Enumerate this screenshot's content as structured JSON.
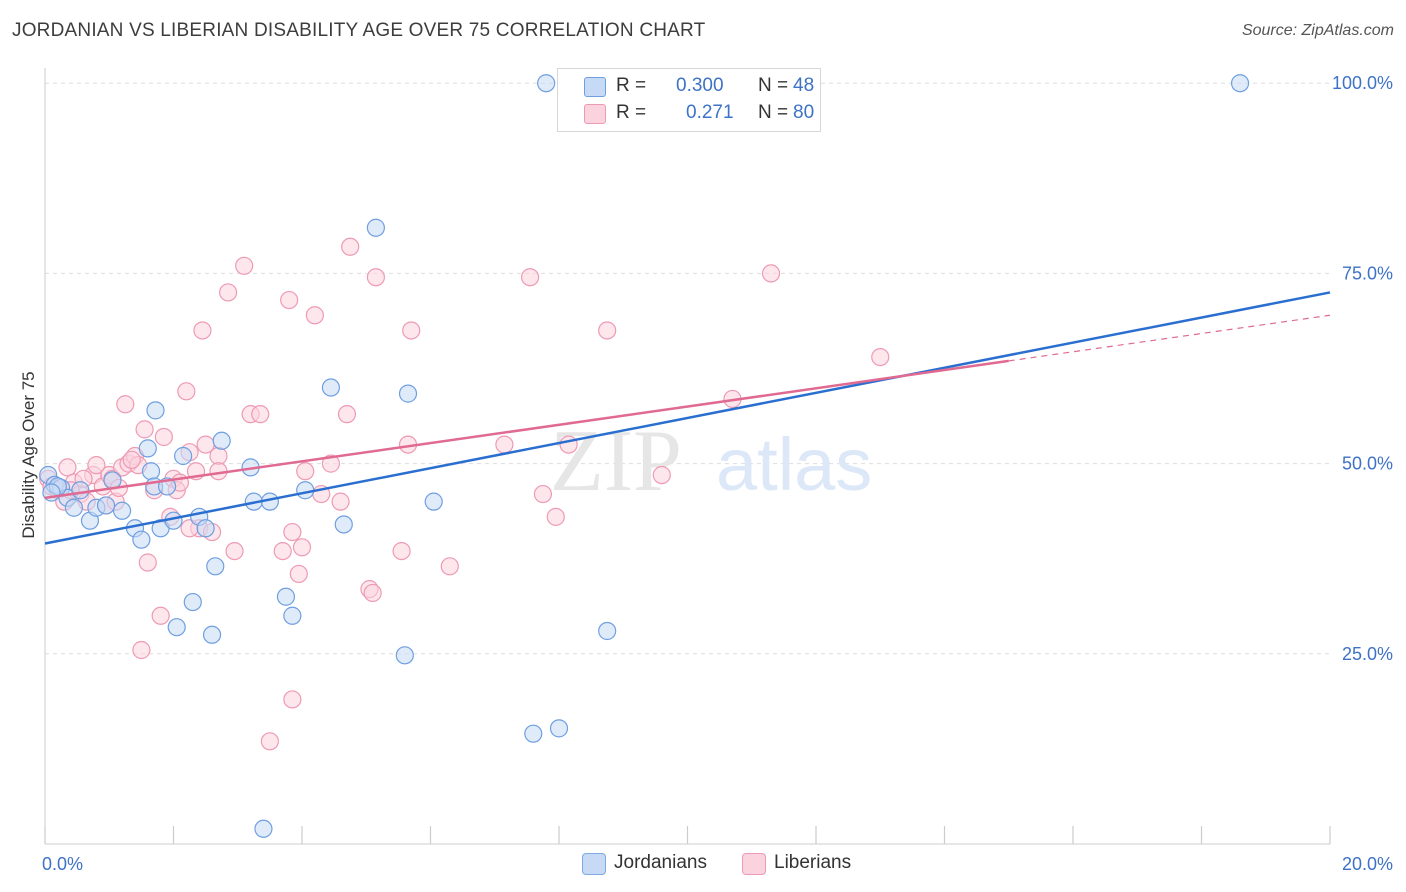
{
  "title": "JORDANIAN VS LIBERIAN DISABILITY AGE OVER 75 CORRELATION CHART",
  "source": "Source: ZipAtlas.com",
  "watermark": {
    "zip": "ZIP",
    "atlas": "atlas"
  },
  "legend": {
    "rows": [
      {
        "r_label": "R =",
        "r_value": "0.300",
        "n_label": "N =",
        "n_value": "48",
        "color": "#a8c6f0",
        "stroke": "#6f9fe0"
      },
      {
        "r_label": "R =",
        "r_value": "0.271",
        "n_label": "N =",
        "n_value": "80",
        "color": "#f7b8cc",
        "stroke": "#e98aa9"
      }
    ]
  },
  "bottom_legend": [
    {
      "label": "Jordanians",
      "color": "#c6daf6",
      "stroke": "#7ea9e4"
    },
    {
      "label": "Liberians",
      "color": "#fbd3df",
      "stroke": "#ee9ab4"
    }
  ],
  "chart_data": {
    "type": "scatter",
    "title": "JORDANIAN VS LIBERIAN DISABILITY AGE OVER 75 CORRELATION CHART",
    "xlabel": "",
    "ylabel": "Disability Age Over 75",
    "xlim": [
      0,
      20
    ],
    "ylim": [
      0,
      102
    ],
    "x_tick_labels": [
      {
        "value": 0,
        "label": "0.0%"
      },
      {
        "value": 20,
        "label": "20.0%"
      }
    ],
    "y_tick_labels": [
      {
        "value": 25,
        "label": "25.0%"
      },
      {
        "value": 50,
        "label": "50.0%"
      },
      {
        "value": 75,
        "label": "75.0%"
      },
      {
        "value": 100,
        "label": "100.0%"
      }
    ],
    "grid": true,
    "legend_position": "top-center",
    "series": [
      {
        "name": "Jordanians",
        "color": "#6f9fe0",
        "fill": "#c6daf6",
        "trend": {
          "x": [
            0,
            20
          ],
          "y": [
            39.5,
            72.5
          ],
          "color": "#2a6fd0"
        },
        "points": [
          [
            0.05,
            48.5
          ],
          [
            0.15,
            47.2
          ],
          [
            0.25,
            46.8
          ],
          [
            0.35,
            45.5
          ],
          [
            0.45,
            44.2
          ],
          [
            0.55,
            46.5
          ],
          [
            0.7,
            42.5
          ],
          [
            0.8,
            44.2
          ],
          [
            0.95,
            44.5
          ],
          [
            1.05,
            47.8
          ],
          [
            1.2,
            43.8
          ],
          [
            1.4,
            41.5
          ],
          [
            1.5,
            40.0
          ],
          [
            1.6,
            52.0
          ],
          [
            1.65,
            49.0
          ],
          [
            1.7,
            47.0
          ],
          [
            1.72,
            57.0
          ],
          [
            1.8,
            41.5
          ],
          [
            1.9,
            47.0
          ],
          [
            2.0,
            42.5
          ],
          [
            2.05,
            28.5
          ],
          [
            2.15,
            51.0
          ],
          [
            2.3,
            31.8
          ],
          [
            2.4,
            43.0
          ],
          [
            2.5,
            41.5
          ],
          [
            2.6,
            27.5
          ],
          [
            2.65,
            36.5
          ],
          [
            2.75,
            53.0
          ],
          [
            3.2,
            49.5
          ],
          [
            3.25,
            45.0
          ],
          [
            3.5,
            45.0
          ],
          [
            3.75,
            32.5
          ],
          [
            3.85,
            30.0
          ],
          [
            4.05,
            46.5
          ],
          [
            4.45,
            60.0
          ],
          [
            4.65,
            42.0
          ],
          [
            5.15,
            81.0
          ],
          [
            5.6,
            24.8
          ],
          [
            5.65,
            59.2
          ],
          [
            6.05,
            45.0
          ],
          [
            7.6,
            14.5
          ],
          [
            7.8,
            100.0
          ],
          [
            8.0,
            15.2
          ],
          [
            8.75,
            28.0
          ],
          [
            3.4,
            2.0
          ],
          [
            18.6,
            100.0
          ],
          [
            0.2,
            47.0
          ],
          [
            0.1,
            46.2
          ]
        ]
      },
      {
        "name": "Liberians",
        "color": "#ee9ab4",
        "fill": "#fbd3df",
        "trend": {
          "x": [
            0,
            15
          ],
          "y": [
            45.5,
            63.5
          ],
          "color": "#e06a92"
        },
        "trend_dashed": {
          "x": [
            15,
            20
          ],
          "y": [
            63.5,
            69.5
          ]
        },
        "points": [
          [
            0.05,
            48.0
          ],
          [
            0.1,
            47.0
          ],
          [
            0.2,
            46.5
          ],
          [
            0.3,
            45.0
          ],
          [
            0.35,
            49.5
          ],
          [
            0.45,
            47.5
          ],
          [
            0.55,
            46.0
          ],
          [
            0.65,
            45.0
          ],
          [
            0.75,
            48.5
          ],
          [
            0.8,
            49.8
          ],
          [
            0.9,
            47.0
          ],
          [
            0.95,
            44.5
          ],
          [
            1.0,
            48.5
          ],
          [
            1.05,
            48.0
          ],
          [
            1.1,
            45.0
          ],
          [
            1.2,
            49.5
          ],
          [
            1.25,
            57.8
          ],
          [
            1.3,
            50.0
          ],
          [
            1.4,
            51.0
          ],
          [
            1.45,
            49.8
          ],
          [
            1.5,
            25.5
          ],
          [
            1.55,
            54.5
          ],
          [
            1.6,
            37.0
          ],
          [
            1.7,
            46.5
          ],
          [
            1.8,
            30.0
          ],
          [
            1.85,
            53.5
          ],
          [
            1.95,
            43.0
          ],
          [
            2.0,
            48.0
          ],
          [
            2.05,
            46.5
          ],
          [
            2.1,
            47.5
          ],
          [
            2.2,
            59.5
          ],
          [
            2.25,
            51.5
          ],
          [
            2.35,
            49.0
          ],
          [
            2.4,
            41.5
          ],
          [
            2.45,
            67.5
          ],
          [
            2.5,
            52.5
          ],
          [
            2.6,
            41.0
          ],
          [
            2.7,
            51.0
          ],
          [
            2.85,
            72.5
          ],
          [
            2.95,
            38.5
          ],
          [
            3.1,
            76.0
          ],
          [
            3.2,
            56.5
          ],
          [
            3.35,
            56.5
          ],
          [
            3.7,
            38.5
          ],
          [
            3.8,
            71.5
          ],
          [
            3.85,
            41.0
          ],
          [
            3.95,
            35.5
          ],
          [
            4.0,
            39.0
          ],
          [
            4.2,
            69.5
          ],
          [
            4.3,
            46.0
          ],
          [
            4.45,
            50.0
          ],
          [
            4.6,
            45.0
          ],
          [
            4.7,
            56.5
          ],
          [
            4.75,
            78.5
          ],
          [
            5.05,
            33.5
          ],
          [
            5.1,
            33.0
          ],
          [
            5.15,
            74.5
          ],
          [
            5.55,
            38.5
          ],
          [
            5.7,
            67.5
          ],
          [
            5.65,
            52.5
          ],
          [
            6.3,
            36.5
          ],
          [
            7.15,
            52.5
          ],
          [
            7.55,
            74.5
          ],
          [
            7.75,
            46.0
          ],
          [
            7.95,
            43.0
          ],
          [
            8.15,
            52.5
          ],
          [
            8.75,
            67.5
          ],
          [
            9.6,
            48.5
          ],
          [
            10.7,
            58.5
          ],
          [
            11.3,
            75.0
          ],
          [
            13.0,
            64.0
          ],
          [
            3.85,
            19.0
          ],
          [
            3.5,
            13.5
          ],
          [
            2.25,
            41.5
          ],
          [
            1.15,
            46.8
          ],
          [
            0.6,
            48.0
          ],
          [
            1.35,
            50.5
          ],
          [
            2.7,
            49.0
          ],
          [
            4.05,
            49.0
          ],
          [
            0.4,
            46.5
          ]
        ]
      }
    ]
  }
}
